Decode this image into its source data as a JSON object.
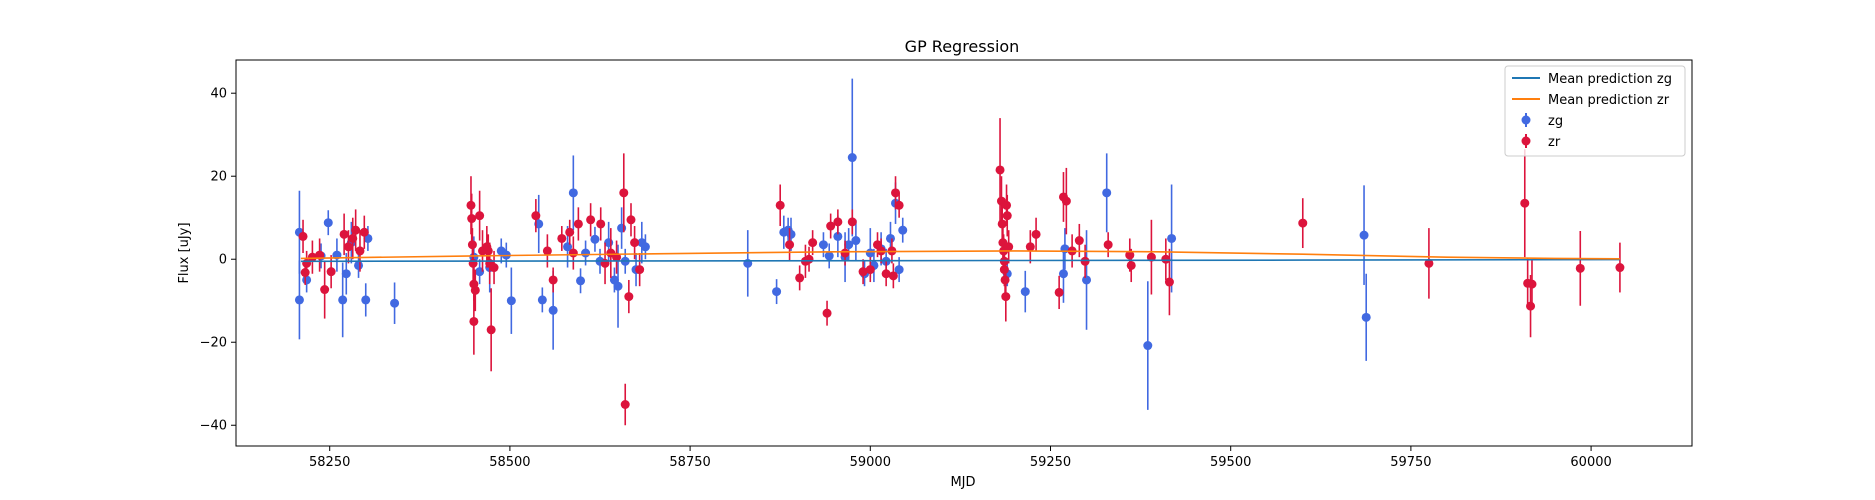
{
  "chart_data": {
    "type": "scatter",
    "title": "GP Regression",
    "xlabel": "MJD",
    "ylabel": "Flux [uJy]",
    "xlim": [
      58120,
      60140
    ],
    "ylim": [
      -45,
      48
    ],
    "x_ticks": [
      58250,
      58500,
      58750,
      59000,
      59250,
      59500,
      59750,
      60000
    ],
    "x_tick_labels": [
      "58250",
      "58500",
      "58750",
      "59000",
      "59250",
      "59500",
      "59750",
      "60000"
    ],
    "y_ticks": [
      -40,
      -20,
      0,
      20,
      40
    ],
    "y_tick_labels": [
      "−40",
      "−20",
      "0",
      "20",
      "40"
    ],
    "grid": false,
    "legend_position": "top-right",
    "series": [
      {
        "name": "Mean prediction zg",
        "kind": "line",
        "color": "#1f77b4",
        "points": [
          [
            58210,
            -0.5
          ],
          [
            58700,
            -0.4
          ],
          [
            59200,
            -0.3
          ],
          [
            59600,
            -0.2
          ],
          [
            60040,
            -0.1
          ]
        ]
      },
      {
        "name": "Mean prediction zr",
        "kind": "line",
        "color": "#ff7f0e",
        "points": [
          [
            58210,
            0.2
          ],
          [
            58450,
            0.8
          ],
          [
            58700,
            1.3
          ],
          [
            58950,
            1.8
          ],
          [
            59200,
            2.0
          ],
          [
            59400,
            1.8
          ],
          [
            59600,
            1.2
          ],
          [
            59800,
            0.5
          ],
          [
            59950,
            0.2
          ],
          [
            60040,
            0.1
          ]
        ]
      },
      {
        "name": "zg",
        "kind": "errorbar",
        "color": "#4169e1",
        "points": [
          [
            58208,
            6.5,
            10
          ],
          [
            58208,
            -9.8,
            9.5
          ],
          [
            58218,
            -5,
            3
          ],
          [
            58238,
            0.8,
            3
          ],
          [
            58248,
            8.8,
            3
          ],
          [
            58260,
            1,
            4
          ],
          [
            58268,
            -9.8,
            9
          ],
          [
            58273,
            -3.5,
            5
          ],
          [
            58280,
            4,
            5
          ],
          [
            58290,
            -1.5,
            3
          ],
          [
            58300,
            -9.8,
            4
          ],
          [
            58303,
            5,
            3
          ],
          [
            58340,
            -10.6,
            5
          ],
          [
            58450,
            0.5,
            5
          ],
          [
            58458,
            -3,
            3
          ],
          [
            58472,
            -2,
            6
          ],
          [
            58488,
            2,
            3
          ],
          [
            58495,
            1,
            3
          ],
          [
            58502,
            -10,
            8
          ],
          [
            58540,
            8.5,
            7
          ],
          [
            58545,
            -9.8,
            3
          ],
          [
            58560,
            -12.3,
            9.5
          ],
          [
            58580,
            3,
            5
          ],
          [
            58588,
            16,
            9
          ],
          [
            58598,
            -5.2,
            3
          ],
          [
            58605,
            1.5,
            3
          ],
          [
            58618,
            4.8,
            3
          ],
          [
            58625,
            -0.5,
            3
          ],
          [
            58637,
            4,
            5
          ],
          [
            58645,
            -5,
            3
          ],
          [
            58650,
            -6.5,
            10
          ],
          [
            58655,
            7.5,
            5
          ],
          [
            58660,
            -0.5,
            3
          ],
          [
            58675,
            -2.5,
            4
          ],
          [
            58683,
            4,
            5
          ],
          [
            58688,
            3,
            3
          ],
          [
            58830,
            -1,
            8
          ],
          [
            58870,
            -7.8,
            3
          ],
          [
            58880,
            6.5,
            4
          ],
          [
            58886,
            7,
            3
          ],
          [
            58890,
            6,
            4
          ],
          [
            58935,
            3.5,
            3
          ],
          [
            58943,
            0.8,
            3
          ],
          [
            58955,
            5.5,
            5
          ],
          [
            58965,
            0.5,
            6
          ],
          [
            58970,
            3.5,
            4
          ],
          [
            58975,
            24.5,
            19
          ],
          [
            58980,
            4.5,
            5
          ],
          [
            58992,
            -3.5,
            3
          ],
          [
            59000,
            1.5,
            6
          ],
          [
            59005,
            -1.5,
            4
          ],
          [
            59015,
            2.5,
            4
          ],
          [
            59022,
            -0.5,
            3
          ],
          [
            59028,
            5,
            4
          ],
          [
            59035,
            13.5,
            5
          ],
          [
            59040,
            -2.5,
            3
          ],
          [
            59045,
            7,
            3
          ],
          [
            59190,
            -3.5,
            3
          ],
          [
            59215,
            -7.8,
            5
          ],
          [
            59268,
            -3.5,
            7
          ],
          [
            59270,
            2.5,
            5
          ],
          [
            59300,
            -5,
            12
          ],
          [
            59328,
            16,
            9.5
          ],
          [
            59385,
            -20.8,
            15.5
          ],
          [
            59418,
            5,
            13
          ],
          [
            59685,
            5.8,
            12
          ],
          [
            59688,
            -14,
            10.5
          ]
        ]
      },
      {
        "name": "zr",
        "kind": "errorbar",
        "color": "#dc143c",
        "points": [
          [
            58213,
            5.5,
            4
          ],
          [
            58216,
            -3.2,
            3
          ],
          [
            58218,
            -1,
            3
          ],
          [
            58226,
            0.5,
            4
          ],
          [
            58236,
            1,
            4
          ],
          [
            58243,
            -7.3,
            7
          ],
          [
            58252,
            -3,
            4
          ],
          [
            58270,
            6,
            5
          ],
          [
            58276,
            3,
            4
          ],
          [
            58282,
            5,
            5
          ],
          [
            58286,
            7,
            5
          ],
          [
            58292,
            2,
            5
          ],
          [
            58298,
            6.5,
            4
          ],
          [
            58446,
            13,
            7
          ],
          [
            58447,
            9.8,
            6
          ],
          [
            58448,
            3.5,
            4
          ],
          [
            58449,
            -1,
            5
          ],
          [
            58450,
            -6,
            4
          ],
          [
            58450,
            -15,
            8
          ],
          [
            58452,
            -7.5,
            5
          ],
          [
            58458,
            10.5,
            6
          ],
          [
            58462,
            2,
            5
          ],
          [
            58468,
            3,
            5
          ],
          [
            58470,
            2,
            4
          ],
          [
            58472,
            -1,
            5
          ],
          [
            58474,
            -17,
            10
          ],
          [
            58478,
            -2,
            4
          ],
          [
            58536,
            10.5,
            4
          ],
          [
            58552,
            2,
            4
          ],
          [
            58560,
            -5,
            3
          ],
          [
            58572,
            5,
            3
          ],
          [
            58583,
            6.5,
            3
          ],
          [
            58588,
            1.5,
            4
          ],
          [
            58595,
            8.5,
            4
          ],
          [
            58612,
            9.5,
            4
          ],
          [
            58626,
            8.5,
            4
          ],
          [
            58632,
            -1,
            5
          ],
          [
            58640,
            1.5,
            6
          ],
          [
            58648,
            0.5,
            4
          ],
          [
            58658,
            16,
            9.5
          ],
          [
            58665,
            -9,
            4
          ],
          [
            58668,
            9.5,
            4
          ],
          [
            58660,
            -35,
            5
          ],
          [
            58673,
            4,
            4
          ],
          [
            58680,
            -2.5,
            4
          ],
          [
            58875,
            13,
            5
          ],
          [
            58888,
            3.5,
            4
          ],
          [
            58902,
            -4.5,
            3
          ],
          [
            58910,
            -0.5,
            4
          ],
          [
            58915,
            0,
            3
          ],
          [
            58920,
            4,
            3
          ],
          [
            58940,
            -13,
            3
          ],
          [
            58945,
            8,
            3
          ],
          [
            58955,
            9,
            3
          ],
          [
            58965,
            1.5,
            3
          ],
          [
            58975,
            9,
            3
          ],
          [
            58990,
            -3,
            3
          ],
          [
            59000,
            -2.5,
            3
          ],
          [
            59010,
            3.5,
            3
          ],
          [
            59015,
            2,
            3
          ],
          [
            59022,
            -3.5,
            3
          ],
          [
            59030,
            2,
            3
          ],
          [
            59032,
            -4,
            3
          ],
          [
            59035,
            16,
            4
          ],
          [
            59040,
            13,
            3
          ],
          [
            59180,
            21.5,
            12.5
          ],
          [
            59182,
            14,
            6
          ],
          [
            59183,
            8.5,
            5
          ],
          [
            59184,
            4,
            4
          ],
          [
            59185,
            2,
            4
          ],
          [
            59186,
            -0.5,
            4
          ],
          [
            59186,
            -2.5,
            4
          ],
          [
            59187,
            -5,
            4
          ],
          [
            59188,
            -9,
            6
          ],
          [
            59189,
            13,
            5
          ],
          [
            59190,
            10.5,
            5
          ],
          [
            59192,
            3,
            4
          ],
          [
            59222,
            3,
            4
          ],
          [
            59230,
            6,
            4
          ],
          [
            59262,
            -8,
            4
          ],
          [
            59268,
            15,
            6
          ],
          [
            59272,
            14,
            8
          ],
          [
            59280,
            2,
            4
          ],
          [
            59290,
            4.5,
            4
          ],
          [
            59298,
            -0.5,
            4
          ],
          [
            59330,
            3.5,
            3
          ],
          [
            59360,
            1,
            4
          ],
          [
            59362,
            -1.5,
            4
          ],
          [
            59390,
            0.5,
            9
          ],
          [
            59410,
            0,
            5
          ],
          [
            59415,
            -5.5,
            8
          ],
          [
            59600,
            8.7,
            6
          ],
          [
            59775,
            -1,
            8.5
          ],
          [
            59908,
            13.5,
            13
          ],
          [
            59912,
            -5.8,
            6
          ],
          [
            59916,
            -11.3,
            7.5
          ],
          [
            59918,
            -6,
            6
          ],
          [
            59985,
            -2.2,
            9
          ],
          [
            60040,
            -2,
            6
          ]
        ]
      }
    ]
  }
}
